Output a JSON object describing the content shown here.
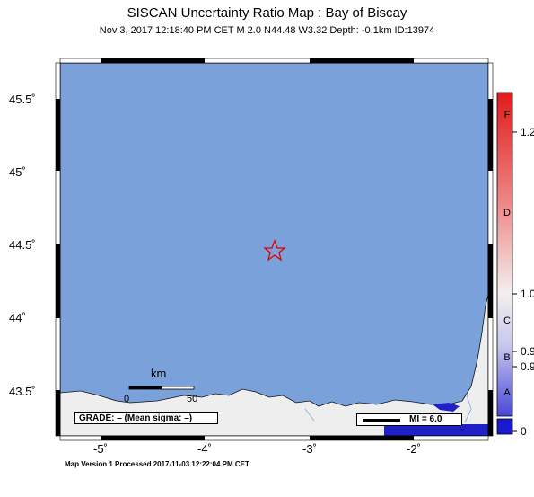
{
  "title": "SISCAN Uncertainty Ratio Map : Bay of Biscay",
  "subtitle": "Nov  3, 2017 12:18:40 PM CET   M 2.0   N44.48 W3.32   Depth: -0.1km   ID:13974",
  "y_labels": [
    "45.5˚",
    "45˚",
    "44.5˚",
    "44˚",
    "43.5˚"
  ],
  "x_labels": [
    "-5˚",
    "-4˚",
    "-3˚",
    "-2˚"
  ],
  "scale_bar": {
    "unit": "km",
    "zero": "0",
    "fifty": "50"
  },
  "grade_text": "GRADE: – (Mean sigma: –)",
  "mi_text": "MI = 6.0",
  "footer": "Map Version 1 Processed 2017-11-03 12:22:04 PM CET",
  "colorbar": {
    "letters": [
      "F",
      "D",
      "C",
      "B",
      "A"
    ],
    "ticks": [
      "1.2",
      "1.0",
      "0.9",
      "0.9",
      "0"
    ]
  },
  "epicenter_star": {
    "lat": 44.48,
    "lon": -3.32
  },
  "colors": {
    "sea": "#7ba1db",
    "land": "#eeeeee",
    "star": "#e00000"
  }
}
